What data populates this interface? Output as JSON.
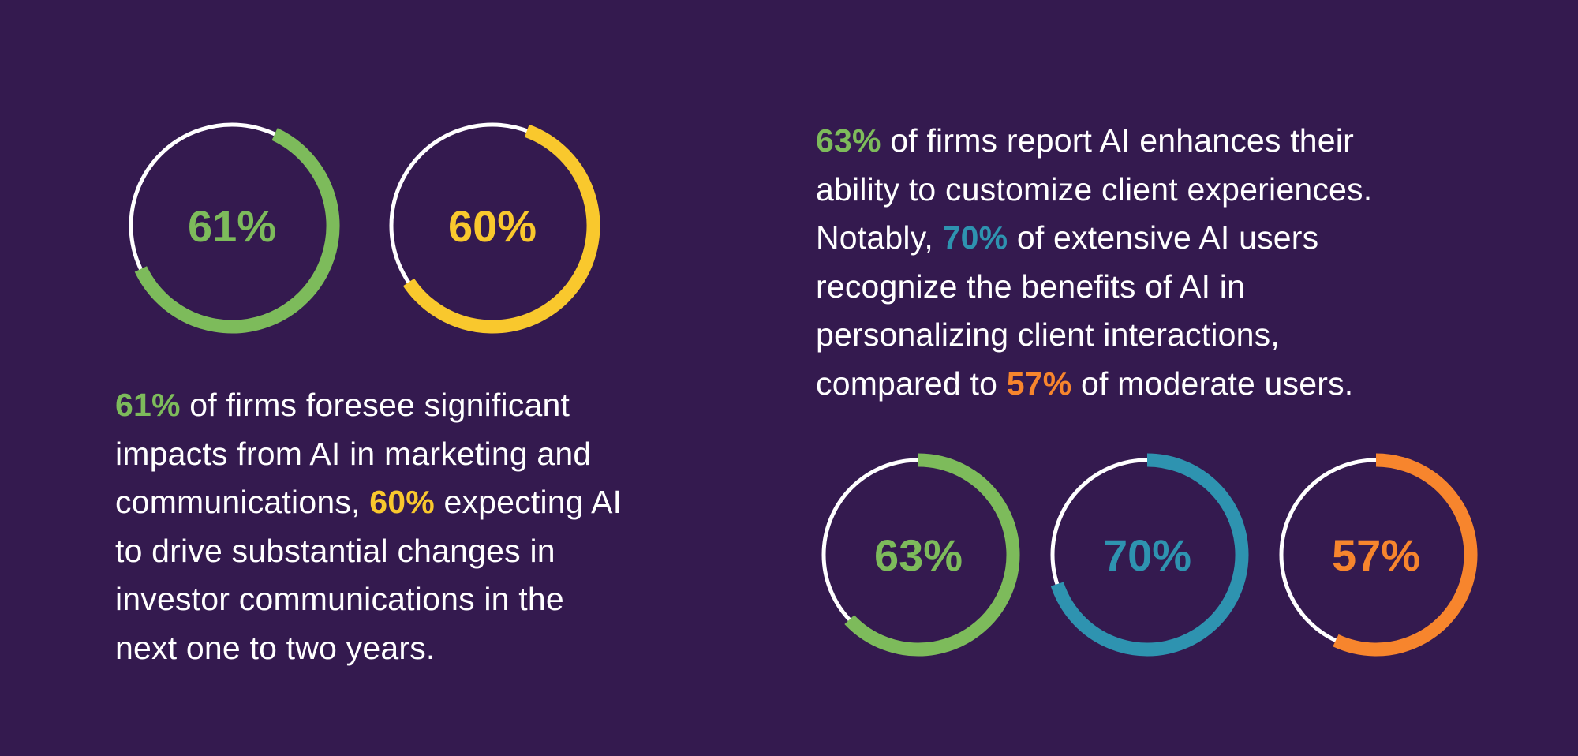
{
  "chart_data": [
    {
      "type": "donut",
      "value": 61,
      "max": 100,
      "label": "61%",
      "color": "#7dbb5b",
      "start": "top-right"
    },
    {
      "type": "donut",
      "value": 60,
      "max": 100,
      "label": "60%",
      "color": "#f9c82d",
      "start": "top-right"
    },
    {
      "type": "donut",
      "value": 63,
      "max": 100,
      "label": "63%",
      "color": "#7dbb5b",
      "start": "top"
    },
    {
      "type": "donut",
      "value": 70,
      "max": 100,
      "label": "70%",
      "color": "#2e93b0",
      "start": "top"
    },
    {
      "type": "donut",
      "value": 57,
      "max": 100,
      "label": "57%",
      "color": "#f7852d",
      "start": "top"
    }
  ],
  "colors": {
    "background": "#341a4f",
    "ring_base": "#ffffff",
    "green": "#7dbb5b",
    "yellow": "#f9c82d",
    "teal": "#2e93b0",
    "orange": "#f7852d"
  },
  "left_text": {
    "line1": {
      "hl": "61%",
      "rest": " of firms foresee significant"
    },
    "line2": "impacts from AI in marketing and",
    "line3": {
      "pre": "communications, ",
      "hl": "60%",
      "rest": " expecting AI"
    },
    "line4": "to drive substantial changes in",
    "line5": "investor communications in the",
    "line6": "next one to two years."
  },
  "right_text": {
    "line1": {
      "hl": "63%",
      "rest": " of firms report AI enhances their"
    },
    "line2": "ability to customize client experiences.",
    "line3": {
      "pre": "Notably, ",
      "hl": "70%",
      "rest": " of extensive AI users"
    },
    "line4": "recognize the benefits of AI in",
    "line5": "personalizing client interactions,",
    "line6": {
      "pre": "compared to ",
      "hl": "57%",
      "rest": " of moderate users."
    }
  }
}
